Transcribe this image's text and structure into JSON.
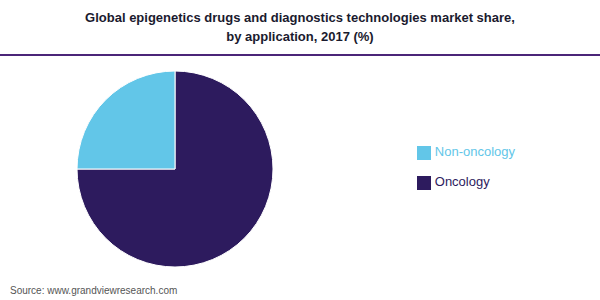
{
  "chart_data": {
    "type": "pie",
    "title": "Global epigenetics drugs and diagnostics technologies market share,\nby application, 2017 (%)",
    "categories": [
      "Oncology",
      "Non-oncology"
    ],
    "values": [
      75,
      25
    ],
    "colors": [
      "#2d1b5e",
      "#62c6e8"
    ],
    "legend": "right",
    "annotations": [
      "Source: www.grandviewresearch.com"
    ]
  }
}
